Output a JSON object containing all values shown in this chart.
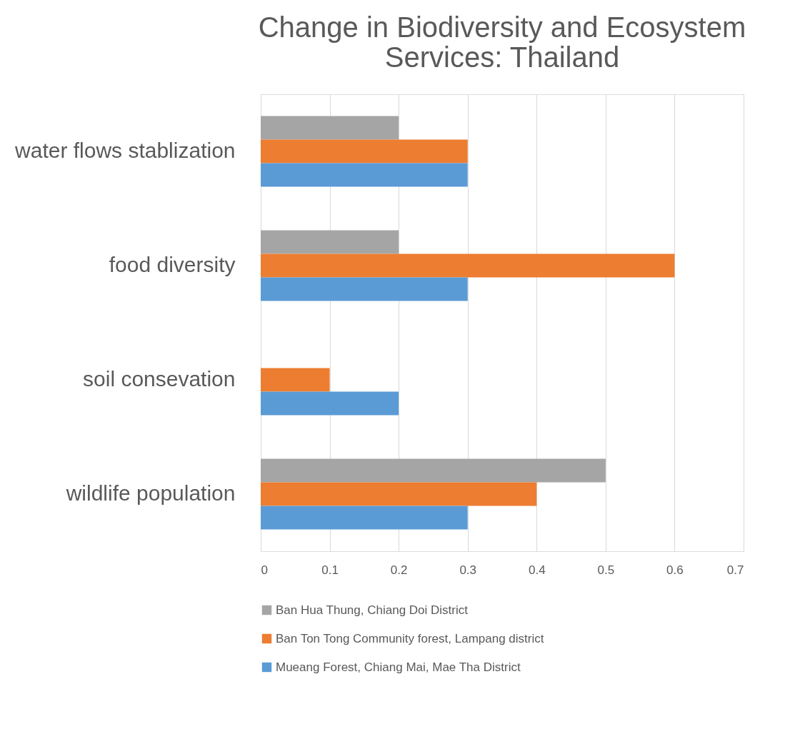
{
  "chart_data": {
    "type": "bar",
    "orientation": "horizontal",
    "title": "Change in Biodiversity and Ecosystem Services: Thailand",
    "categories": [
      "water flows stablization",
      "food diversity",
      "soil consevation",
      "wildlife population"
    ],
    "series": [
      {
        "name": "Ban Hua Thung, Chiang Doi District",
        "color": "#a5a5a5",
        "values": [
          0.2,
          0.2,
          null,
          0.5
        ]
      },
      {
        "name": "Ban Ton Tong Community forest, Lampang district",
        "color": "#ed7d31",
        "values": [
          0.3,
          0.6,
          0.1,
          0.4
        ]
      },
      {
        "name": "Mueang Forest, Chiang Mai, Mae Tha District",
        "color": "#5b9bd5",
        "values": [
          0.3,
          0.3,
          0.2,
          0.3
        ]
      }
    ],
    "xlim": [
      0,
      0.7
    ],
    "xticks": [
      0,
      0.1,
      0.2,
      0.3,
      0.4,
      0.5,
      0.6,
      0.7
    ],
    "grid": "x",
    "legend": "bottom"
  }
}
